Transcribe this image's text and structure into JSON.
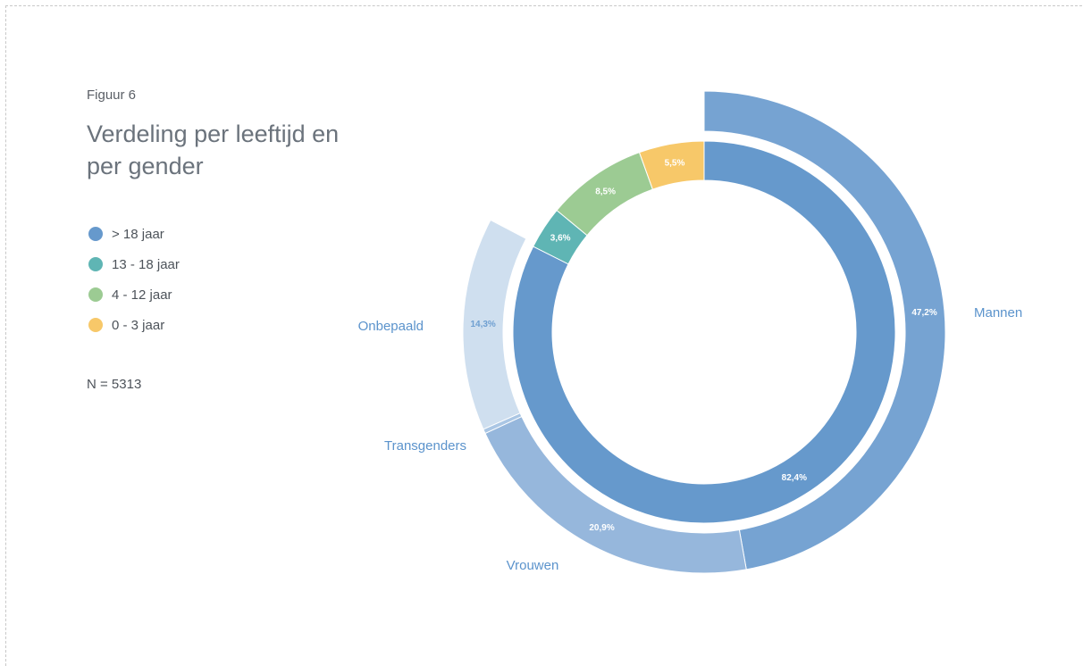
{
  "figure_label": "Figuur 6",
  "title": "Verdeling per leeftijd en per gender",
  "legend": [
    {
      "label": "> 18 jaar",
      "color": "#6699cc"
    },
    {
      "label": "13 - 18 jaar",
      "color": "#5fb5b4"
    },
    {
      "label": "4 - 12 jaar",
      "color": "#9ccb93"
    },
    {
      "label": "0 - 3 jaar",
      "color": "#f7c869"
    }
  ],
  "n_label": "N = 5313",
  "chart_data": {
    "type": "pie",
    "rings": [
      {
        "name": "leeftijd",
        "slices": [
          {
            "label": "> 18 jaar",
            "value": 82.4,
            "display": "82,4%",
            "color": "#6699cc"
          },
          {
            "label": "13 - 18 jaar",
            "value": 3.6,
            "display": "3,6%",
            "color": "#5fb5b4"
          },
          {
            "label": "4 - 12 jaar",
            "value": 8.5,
            "display": "8,5%",
            "color": "#9ccb93"
          },
          {
            "label": "0 - 3 jaar",
            "value": 5.5,
            "display": "5,5%",
            "color": "#f7c869"
          }
        ]
      },
      {
        "name": "gender",
        "slices": [
          {
            "label": "Mannen",
            "value": 47.2,
            "display": "47,2%",
            "color": "#76a3d2"
          },
          {
            "label": "Vrouwen",
            "value": 20.9,
            "display": "20,9%",
            "color": "#96b7dc"
          },
          {
            "label": "Transgenders",
            "value": 0.3,
            "display": "",
            "color": "#aac6e4"
          },
          {
            "label": "Onbepaald",
            "value": 14.3,
            "display": "14,3%",
            "color": "#cfdfef"
          }
        ]
      }
    ]
  }
}
